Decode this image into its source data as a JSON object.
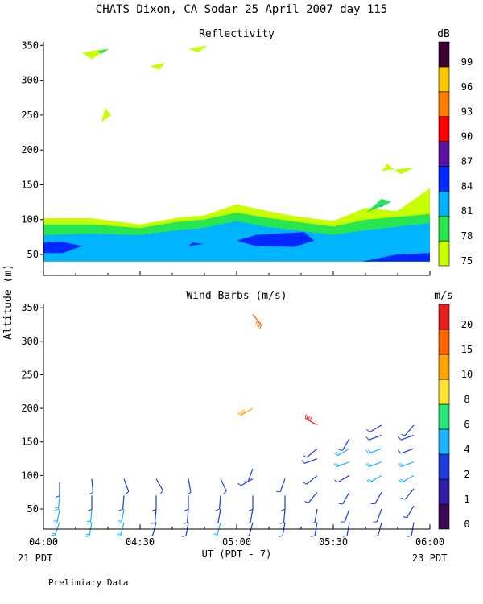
{
  "header": {
    "title": "CHATS Dixon, CA  Sodar  25 April 2007  day 115",
    "ylabel": "Altitude (m)",
    "xlabel": "UT  (PDT - 7)",
    "left_note": "21 PDT",
    "right_note": "23 PDT",
    "footer": "Prelimiary Data"
  },
  "chart_data": [
    {
      "type": "heatmap",
      "title": "Reflectivity",
      "units": "dB",
      "x_ticks": [
        "04:00",
        "04:30",
        "05:00",
        "05:30",
        "06:00"
      ],
      "y_ticks": [
        50,
        100,
        150,
        200,
        250,
        300,
        350
      ],
      "xlim": [
        "04:00",
        "06:00"
      ],
      "ylim": [
        20,
        355
      ],
      "colorbar": {
        "levels": [
          75,
          78,
          81,
          84,
          87,
          90,
          93,
          96,
          99
        ],
        "colors": [
          "#c8ff00",
          "#28e650",
          "#00b4ff",
          "#0028ff",
          "#5a14a0",
          "#ff0000",
          "#ff8000",
          "#ffc800",
          "#3c0032"
        ]
      },
      "contours": [
        {
          "level": 75,
          "hours": [
            4.0,
            4.0,
            4.25,
            4.5,
            4.7,
            4.83,
            5.0,
            5.2,
            5.3,
            5.5,
            5.67,
            5.83,
            6.0,
            6.0
          ],
          "alts": [
            40,
            102,
            102,
            93,
            103,
            106,
            122,
            110,
            105,
            98,
            117,
            112,
            145,
            40
          ]
        },
        {
          "level": 78,
          "hours": [
            4.0,
            4.0,
            4.25,
            4.5,
            4.7,
            4.83,
            5.0,
            5.15,
            5.3,
            5.5,
            5.67,
            6.0,
            6.0
          ],
          "alts": [
            40,
            93,
            93,
            88,
            97,
            100,
            110,
            103,
            97,
            90,
            100,
            108,
            40
          ]
        },
        {
          "level": 81,
          "hours": [
            4.0,
            4.0,
            4.25,
            4.5,
            4.7,
            4.83,
            5.0,
            5.15,
            5.3,
            5.5,
            5.67,
            6.0,
            6.0
          ],
          "alts": [
            40,
            78,
            80,
            78,
            85,
            88,
            98,
            90,
            85,
            78,
            85,
            95,
            40
          ]
        },
        {
          "level": 84,
          "hours": [
            4.0,
            4.0,
            4.1,
            4.2,
            4.1,
            4.0
          ],
          "alts": [
            55,
            67,
            68,
            62,
            52,
            52
          ]
        },
        {
          "level": 84,
          "hours": [
            5.0,
            5.1,
            5.2,
            5.35,
            5.4,
            5.3,
            5.1
          ],
          "alts": [
            70,
            78,
            80,
            82,
            70,
            61,
            62
          ]
        },
        {
          "level": 84,
          "hours": [
            4.75,
            4.83,
            4.77
          ],
          "alts": [
            62,
            65,
            67
          ]
        },
        {
          "level": 84,
          "hours": [
            5.65,
            5.83,
            6.0,
            6.0,
            5.67
          ],
          "alts": [
            40,
            50,
            52,
            40,
            40
          ]
        },
        {
          "level": 75,
          "hours": [
            4.2,
            4.33,
            4.25,
            4.2
          ],
          "alts": [
            340,
            345,
            330,
            340
          ]
        },
        {
          "level": 78,
          "hours": [
            4.28,
            4.34,
            4.3
          ],
          "alts": [
            342,
            345,
            338
          ]
        },
        {
          "level": 75,
          "hours": [
            4.55,
            4.63,
            4.6
          ],
          "alts": [
            320,
            325,
            315
          ]
        },
        {
          "level": 75,
          "hours": [
            4.75,
            4.85,
            4.8
          ],
          "alts": [
            345,
            350,
            340
          ]
        },
        {
          "level": 75,
          "hours": [
            4.3,
            4.35,
            4.32
          ],
          "alts": [
            240,
            250,
            260
          ]
        },
        {
          "level": 75,
          "hours": [
            5.75,
            5.92,
            5.85,
            5.78
          ],
          "alts": [
            170,
            175,
            165,
            180
          ]
        },
        {
          "level": 78,
          "hours": [
            5.67,
            5.8,
            5.75
          ],
          "alts": [
            110,
            125,
            130
          ]
        },
        {
          "level": 81,
          "hours": [
            5.73,
            5.77,
            5.75
          ],
          "alts": [
            120,
            122,
            118
          ]
        }
      ]
    },
    {
      "type": "wind_barbs",
      "title": "Wind Barbs (m/s)",
      "units": "m/s",
      "x_ticks": [
        "04:00",
        "04:30",
        "05:00",
        "05:30",
        "06:00"
      ],
      "y_ticks": [
        50,
        100,
        150,
        200,
        250,
        300,
        350
      ],
      "xlim": [
        "04:00",
        "06:00"
      ],
      "ylim": [
        20,
        355
      ],
      "colorbar": {
        "levels": [
          0,
          1,
          2,
          4,
          6,
          8,
          10,
          15,
          20
        ],
        "colors": [
          "#3c0a50",
          "#321ea0",
          "#1e3cdc",
          "#1eb4ff",
          "#28e678",
          "#ffe632",
          "#ffa500",
          "#ff6400",
          "#e61e1e"
        ]
      },
      "barbs": [
        {
          "time": "04:05",
          "alt": 30,
          "speed": 5,
          "dir": 200
        },
        {
          "time": "04:05",
          "alt": 50,
          "speed": 5,
          "dir": 190
        },
        {
          "time": "04:05",
          "alt": 70,
          "speed": 4,
          "dir": 185
        },
        {
          "time": "04:05",
          "alt": 90,
          "speed": 3,
          "dir": 180
        },
        {
          "time": "04:15",
          "alt": 30,
          "speed": 4,
          "dir": 190
        },
        {
          "time": "04:15",
          "alt": 50,
          "speed": 4,
          "dir": 185
        },
        {
          "time": "04:15",
          "alt": 70,
          "speed": 3,
          "dir": 180
        },
        {
          "time": "04:15",
          "alt": 95,
          "speed": 2,
          "dir": 175
        },
        {
          "time": "04:25",
          "alt": 30,
          "speed": 4,
          "dir": 195
        },
        {
          "time": "04:25",
          "alt": 50,
          "speed": 4,
          "dir": 190
        },
        {
          "time": "04:25",
          "alt": 70,
          "speed": 3,
          "dir": 185
        },
        {
          "time": "04:25",
          "alt": 95,
          "speed": 2,
          "dir": 160
        },
        {
          "time": "04:35",
          "alt": 30,
          "speed": 3,
          "dir": 195
        },
        {
          "time": "04:35",
          "alt": 50,
          "speed": 3,
          "dir": 185
        },
        {
          "time": "04:35",
          "alt": 70,
          "speed": 3,
          "dir": 180
        },
        {
          "time": "04:35",
          "alt": 95,
          "speed": 2,
          "dir": 150
        },
        {
          "time": "04:45",
          "alt": 30,
          "speed": 3,
          "dir": 190
        },
        {
          "time": "04:45",
          "alt": 50,
          "speed": 3,
          "dir": 185
        },
        {
          "time": "04:45",
          "alt": 70,
          "speed": 3,
          "dir": 180
        },
        {
          "time": "04:45",
          "alt": 95,
          "speed": 2,
          "dir": 170
        },
        {
          "time": "04:55",
          "alt": 30,
          "speed": 4,
          "dir": 195
        },
        {
          "time": "04:55",
          "alt": 50,
          "speed": 3,
          "dir": 190
        },
        {
          "time": "04:55",
          "alt": 70,
          "speed": 3,
          "dir": 185
        },
        {
          "time": "04:55",
          "alt": 95,
          "speed": 2,
          "dir": 155
        },
        {
          "time": "05:05",
          "alt": 30,
          "speed": 3,
          "dir": 195
        },
        {
          "time": "05:05",
          "alt": 50,
          "speed": 3,
          "dir": 190
        },
        {
          "time": "05:05",
          "alt": 70,
          "speed": 2,
          "dir": 180
        },
        {
          "time": "05:05",
          "alt": 95,
          "speed": 2,
          "dir": 240
        },
        {
          "time": "05:05",
          "alt": 110,
          "speed": 2,
          "dir": 200
        },
        {
          "time": "05:05",
          "alt": 200,
          "speed": 10,
          "dir": 240
        },
        {
          "time": "05:05",
          "alt": 340,
          "speed": 15,
          "dir": 140
        },
        {
          "time": "05:15",
          "alt": 30,
          "speed": 3,
          "dir": 190
        },
        {
          "time": "05:15",
          "alt": 50,
          "speed": 3,
          "dir": 185
        },
        {
          "time": "05:15",
          "alt": 70,
          "speed": 2,
          "dir": 180
        },
        {
          "time": "05:15",
          "alt": 95,
          "speed": 2,
          "dir": 200
        },
        {
          "time": "05:25",
          "alt": 30,
          "speed": 3,
          "dir": 190
        },
        {
          "time": "05:25",
          "alt": 50,
          "speed": 3,
          "dir": 190
        },
        {
          "time": "05:25",
          "alt": 75,
          "speed": 2,
          "dir": 220
        },
        {
          "time": "05:25",
          "alt": 100,
          "speed": 3,
          "dir": 230
        },
        {
          "time": "05:25",
          "alt": 125,
          "speed": 3,
          "dir": 250
        },
        {
          "time": "05:25",
          "alt": 140,
          "speed": 2,
          "dir": 230
        },
        {
          "time": "05:25",
          "alt": 175,
          "speed": 20,
          "dir": 300
        },
        {
          "time": "05:35",
          "alt": 30,
          "speed": 3,
          "dir": 190
        },
        {
          "time": "05:35",
          "alt": 50,
          "speed": 2,
          "dir": 200
        },
        {
          "time": "05:35",
          "alt": 75,
          "speed": 2,
          "dir": 210
        },
        {
          "time": "05:35",
          "alt": 100,
          "speed": 3,
          "dir": 240
        },
        {
          "time": "05:35",
          "alt": 120,
          "speed": 4,
          "dir": 250
        },
        {
          "time": "05:35",
          "alt": 140,
          "speed": 4,
          "dir": 240
        },
        {
          "time": "05:35",
          "alt": 155,
          "speed": 2,
          "dir": 210
        },
        {
          "time": "05:45",
          "alt": 30,
          "speed": 3,
          "dir": 195
        },
        {
          "time": "05:45",
          "alt": 50,
          "speed": 2,
          "dir": 200
        },
        {
          "time": "05:45",
          "alt": 75,
          "speed": 3,
          "dir": 210
        },
        {
          "time": "05:45",
          "alt": 100,
          "speed": 4,
          "dir": 240
        },
        {
          "time": "05:45",
          "alt": 120,
          "speed": 4,
          "dir": 250
        },
        {
          "time": "05:45",
          "alt": 140,
          "speed": 4,
          "dir": 250
        },
        {
          "time": "05:45",
          "alt": 160,
          "speed": 3,
          "dir": 250
        },
        {
          "time": "05:45",
          "alt": 175,
          "speed": 2,
          "dir": 240
        },
        {
          "time": "05:55",
          "alt": 30,
          "speed": 3,
          "dir": 190
        },
        {
          "time": "05:55",
          "alt": 55,
          "speed": 2,
          "dir": 210
        },
        {
          "time": "05:55",
          "alt": 80,
          "speed": 2,
          "dir": 220
        },
        {
          "time": "05:55",
          "alt": 100,
          "speed": 4,
          "dir": 240
        },
        {
          "time": "05:55",
          "alt": 120,
          "speed": 4,
          "dir": 250
        },
        {
          "time": "05:55",
          "alt": 140,
          "speed": 3,
          "dir": 250
        },
        {
          "time": "05:55",
          "alt": 160,
          "speed": 3,
          "dir": 250
        },
        {
          "time": "05:55",
          "alt": 175,
          "speed": 2,
          "dir": 220
        }
      ]
    }
  ]
}
